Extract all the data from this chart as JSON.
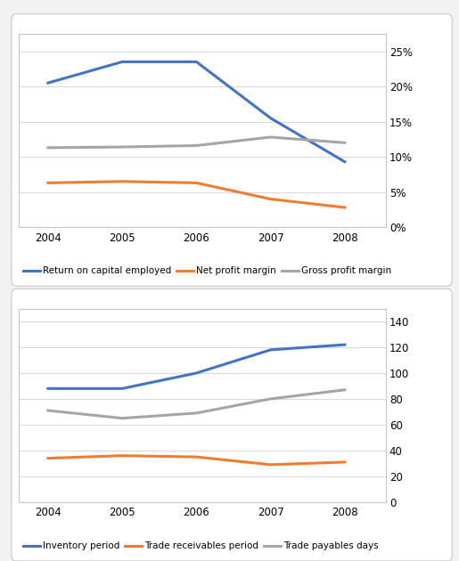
{
  "years": [
    2004,
    2005,
    2006,
    2007,
    2008
  ],
  "chart1": {
    "roce": [
      0.205,
      0.235,
      0.235,
      0.155,
      0.093
    ],
    "npm": [
      0.063,
      0.065,
      0.063,
      0.04,
      0.028
    ],
    "gpm": [
      0.113,
      0.114,
      0.116,
      0.128,
      0.12
    ],
    "ylim": [
      0,
      0.275
    ],
    "yticks": [
      0,
      0.05,
      0.1,
      0.15,
      0.2,
      0.25
    ],
    "labels": [
      "Return on capital employed",
      "Net profit margin",
      "Gross profit margin"
    ],
    "colors": [
      "#4472c4",
      "#ed7d31",
      "#a5a5a5"
    ]
  },
  "chart2": {
    "inventory": [
      88,
      88,
      100,
      118,
      122
    ],
    "receivables": [
      34,
      36,
      35,
      29,
      31
    ],
    "payables": [
      71,
      65,
      69,
      80,
      87
    ],
    "ylim": [
      0,
      150
    ],
    "yticks": [
      0,
      20,
      40,
      60,
      80,
      100,
      120,
      140
    ],
    "labels": [
      "Inventory period",
      "Trade receivables period",
      "Trade payables days"
    ],
    "colors": [
      "#4472c4",
      "#ed7d31",
      "#a5a5a5"
    ]
  },
  "line_width": 2.2,
  "bg_color": "#f2f2f2",
  "panel_bg": "#ffffff",
  "grid_color": "#d9d9d9",
  "legend_fontsize": 7.5,
  "tick_fontsize": 8.5,
  "border_color": "#c8c8c8"
}
